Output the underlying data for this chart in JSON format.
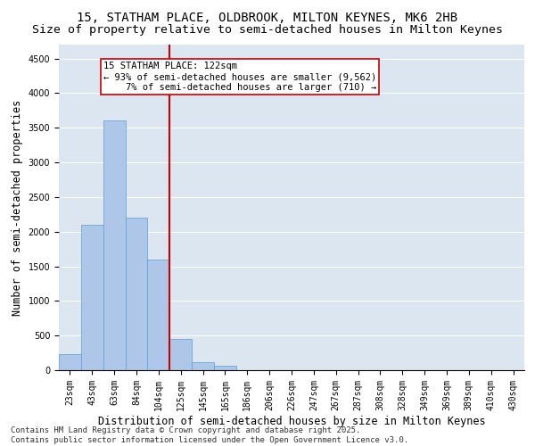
{
  "title1": "15, STATHAM PLACE, OLDBROOK, MILTON KEYNES, MK6 2HB",
  "title2": "Size of property relative to semi-detached houses in Milton Keynes",
  "xlabel": "Distribution of semi-detached houses by size in Milton Keynes",
  "ylabel": "Number of semi-detached properties",
  "categories": [
    "23sqm",
    "43sqm",
    "63sqm",
    "84sqm",
    "104sqm",
    "125sqm",
    "145sqm",
    "165sqm",
    "186sqm",
    "206sqm",
    "226sqm",
    "247sqm",
    "267sqm",
    "287sqm",
    "308sqm",
    "328sqm",
    "349sqm",
    "369sqm",
    "389sqm",
    "410sqm",
    "430sqm"
  ],
  "values": [
    230,
    2100,
    3600,
    2200,
    1600,
    450,
    110,
    60,
    0,
    0,
    0,
    0,
    0,
    0,
    0,
    0,
    0,
    0,
    0,
    0,
    0
  ],
  "bar_color": "#aec6e8",
  "bar_edge_color": "#5a9fd4",
  "property_line_x": 4.5,
  "annotation_line1": "15 STATHAM PLACE: 122sqm",
  "annotation_line2": "← 93% of semi-detached houses are smaller (9,562)",
  "annotation_line3": "    7% of semi-detached houses are larger (710) →",
  "vline_color": "#cc0000",
  "box_color": "#cc0000",
  "ylim": [
    0,
    4700
  ],
  "yticks": [
    0,
    500,
    1000,
    1500,
    2000,
    2500,
    3000,
    3500,
    4000,
    4500
  ],
  "bg_color": "#dce6f1",
  "footnote": "Contains HM Land Registry data © Crown copyright and database right 2025.\nContains public sector information licensed under the Open Government Licence v3.0.",
  "title_fontsize": 10,
  "subtitle_fontsize": 9.5,
  "axis_label_fontsize": 8.5,
  "tick_fontsize": 7,
  "annotation_fontsize": 7.5,
  "footnote_fontsize": 6.5
}
